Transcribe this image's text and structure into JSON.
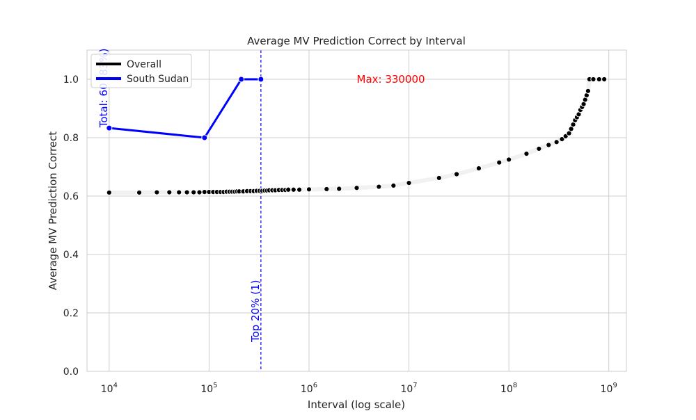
{
  "chart_data": {
    "type": "line",
    "title": "Average MV Prediction Correct by Interval",
    "xlabel": "Interval (log scale)",
    "ylabel": "Average MV Prediction Correct",
    "xscale": "log",
    "xlim": [
      6000,
      1500000000
    ],
    "ylim": [
      0.0,
      1.1
    ],
    "x_ticks": [
      {
        "value": 10000,
        "base": "10",
        "exp": "4"
      },
      {
        "value": 100000,
        "base": "10",
        "exp": "5"
      },
      {
        "value": 1000000,
        "base": "10",
        "exp": "6"
      },
      {
        "value": 10000000,
        "base": "10",
        "exp": "7"
      },
      {
        "value": 100000000,
        "base": "10",
        "exp": "8"
      },
      {
        "value": 1000000000,
        "base": "10",
        "exp": "9"
      }
    ],
    "y_ticks": [
      {
        "value": 0.0,
        "label": "0.0"
      },
      {
        "value": 0.2,
        "label": "0.2"
      },
      {
        "value": 0.4,
        "label": "0.4"
      },
      {
        "value": 0.6,
        "label": "0.6"
      },
      {
        "value": 0.8,
        "label": "0.8"
      },
      {
        "value": 1.0,
        "label": "1.0"
      }
    ],
    "grid": true,
    "legend_position": "top-left",
    "series": [
      {
        "name": "Overall",
        "color": "#000000",
        "marker": "circle",
        "x": [
          10000,
          20000,
          30000,
          40000,
          50000,
          60000,
          70000,
          80000,
          90000,
          100000,
          110000,
          120000,
          130000,
          140000,
          150000,
          160000,
          170000,
          180000,
          190000,
          200000,
          220000,
          240000,
          260000,
          280000,
          300000,
          320000,
          340000,
          360000,
          380000,
          400000,
          430000,
          460000,
          500000,
          540000,
          580000,
          620000,
          700000,
          800000,
          1000000,
          1500000,
          2000000,
          3000000,
          5000000,
          7000000,
          10000000,
          20000000,
          30000000,
          50000000,
          80000000,
          100000000,
          150000000,
          200000000,
          250000000,
          300000000,
          340000000,
          370000000,
          400000000,
          420000000,
          440000000,
          460000000,
          480000000,
          500000000,
          520000000,
          540000000,
          560000000,
          580000000,
          600000000,
          620000000,
          640000000,
          700000000,
          800000000,
          900000000
        ],
        "y": [
          0.612,
          0.612,
          0.613,
          0.613,
          0.613,
          0.613,
          0.613,
          0.613,
          0.614,
          0.614,
          0.614,
          0.614,
          0.614,
          0.614,
          0.615,
          0.615,
          0.615,
          0.615,
          0.616,
          0.616,
          0.616,
          0.617,
          0.617,
          0.617,
          0.618,
          0.618,
          0.618,
          0.619,
          0.619,
          0.62,
          0.62,
          0.62,
          0.621,
          0.621,
          0.621,
          0.622,
          0.622,
          0.622,
          0.623,
          0.624,
          0.625,
          0.628,
          0.632,
          0.636,
          0.645,
          0.662,
          0.675,
          0.695,
          0.715,
          0.725,
          0.745,
          0.762,
          0.775,
          0.785,
          0.795,
          0.805,
          0.815,
          0.83,
          0.845,
          0.86,
          0.87,
          0.88,
          0.895,
          0.905,
          0.915,
          0.93,
          0.945,
          0.96,
          1.0,
          1.0,
          1.0,
          1.0
        ]
      },
      {
        "name": "South Sudan",
        "color": "#0000ff",
        "marker": "circle",
        "x": [
          10000,
          90000,
          210000,
          330000
        ],
        "y": [
          0.833,
          0.8,
          1.0,
          1.0
        ]
      }
    ],
    "annotations": [
      {
        "text": "Max: 330000",
        "x": 3000000,
        "y": 1.0,
        "color": "#ff0000"
      },
      {
        "text": "Total: 60 (83%)",
        "x": 10000,
        "y": 0.835,
        "color": "#0000ff",
        "rotation": -90
      },
      {
        "text": "Top 20% (1)",
        "x": 330000,
        "y": 0.1,
        "color": "#0000ff",
        "rotation": -90
      }
    ],
    "reference_lines": [
      {
        "orientation": "vertical",
        "x": 330000,
        "color": "#0000ff",
        "style": "dashed"
      }
    ]
  }
}
